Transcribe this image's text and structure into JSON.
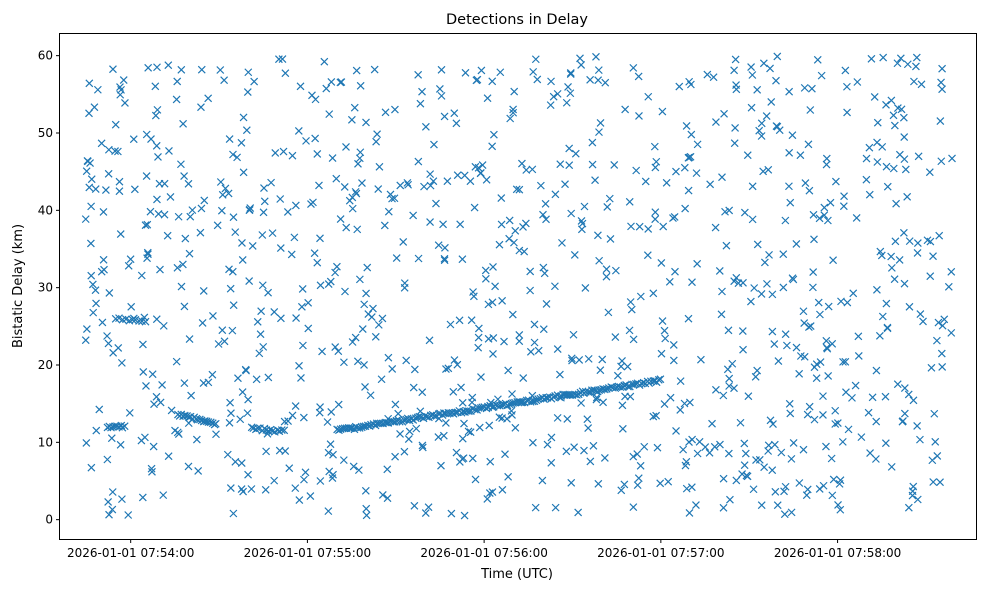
{
  "chart_data": {
    "type": "scatter",
    "title": "Detections in Delay",
    "xlabel": "Time (UTC)",
    "ylabel": "Bistatic Delay (km)",
    "marker": "x",
    "color": "#1f77b4",
    "grid": false,
    "legend": "none",
    "x_ticks": [
      "2026-01-01 07:54:00",
      "2026-01-01 07:55:00",
      "2026-01-01 07:56:00",
      "2026-01-01 07:57:00",
      "2026-01-01 07:58:00"
    ],
    "y_ticks": [
      0,
      10,
      20,
      30,
      40,
      50,
      60
    ],
    "xlim": [
      "2026-01-01 07:53:36",
      "2026-01-01 07:58:47"
    ],
    "ylim": [
      -2.5,
      62.8
    ],
    "tracks": [
      {
        "start": "2026-01-01 07:53:52",
        "end": "2026-01-01 07:53:58",
        "y_start": 12.0,
        "y_end": 12.0,
        "points": 10
      },
      {
        "start": "2026-01-01 07:54:16",
        "end": "2026-01-01 07:54:29",
        "y_start": 13.6,
        "y_end": 12.4,
        "points": 22
      },
      {
        "start": "2026-01-01 07:54:41",
        "end": "2026-01-01 07:54:52",
        "y_start": 11.8,
        "y_end": 11.4,
        "points": 16
      },
      {
        "start": "2026-01-01 07:55:10",
        "end": "2026-01-01 07:57:00",
        "y_start": 11.5,
        "y_end": 18.0,
        "points": 170
      },
      {
        "start": "2026-01-01 07:53:55",
        "end": "2026-01-01 07:54:05",
        "y_start": 26.0,
        "y_end": 25.5,
        "points": 10
      }
    ],
    "clutter": {
      "count": 1040,
      "x_range": [
        "2026-01-01 07:53:44",
        "2026-01-01 07:58:39"
      ],
      "y_range": [
        0.5,
        60
      ]
    }
  }
}
